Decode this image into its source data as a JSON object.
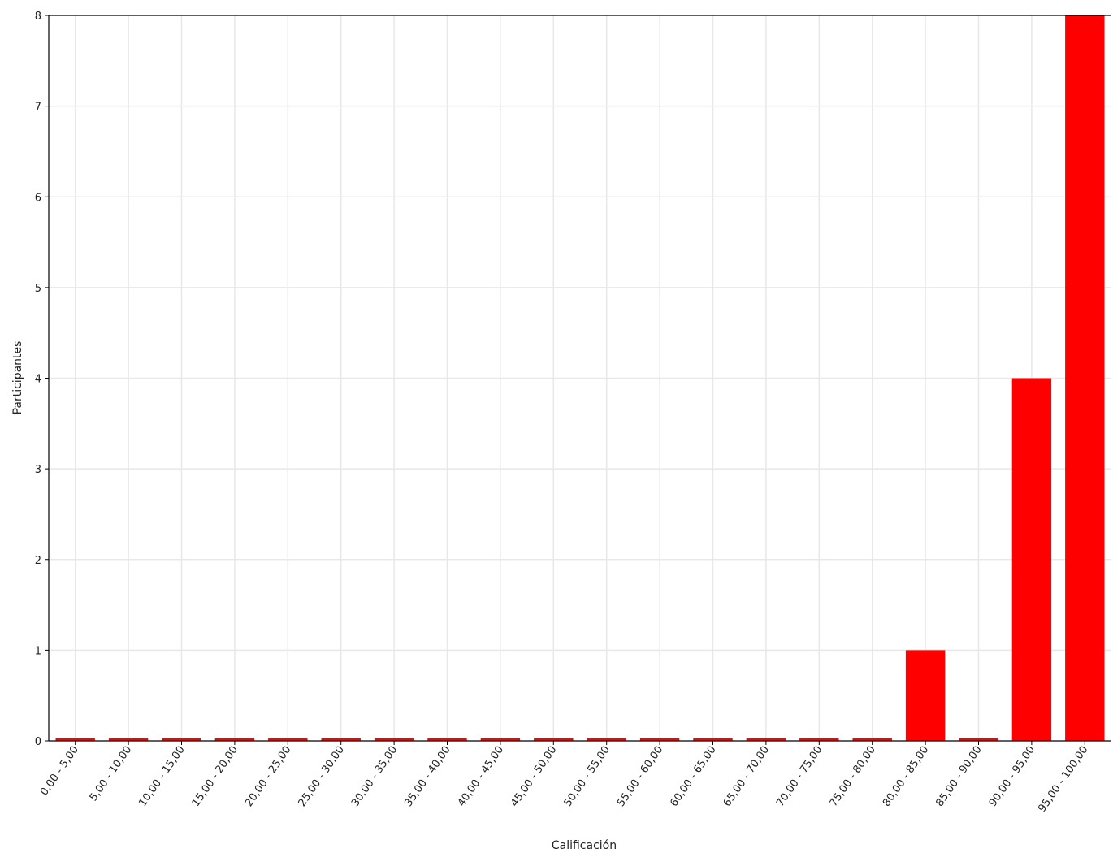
{
  "chart_data": {
    "type": "bar",
    "xlabel": "Calificación",
    "ylabel": "Participantes",
    "ylim": [
      0,
      8
    ],
    "yticks": [
      "0",
      "1",
      "2",
      "3",
      "4",
      "5",
      "6",
      "7",
      "8"
    ],
    "grid": true,
    "categories": [
      "0,00 - 5,00",
      "5,00 - 10,00",
      "10,00 - 15,00",
      "15,00 - 20,00",
      "20,00 - 25,00",
      "25,00 - 30,00",
      "30,00 - 35,00",
      "35,00 - 40,00",
      "40,00 - 45,00",
      "45,00 - 50,00",
      "50,00 - 55,00",
      "55,00 - 60,00",
      "60,00 - 65,00",
      "65,00 - 70,00",
      "70,00 - 75,00",
      "75,00 - 80,00",
      "80,00 - 85,00",
      "85,00 - 90,00",
      "90,00 - 95,00",
      "95,00 - 100,00"
    ],
    "values": [
      0,
      0,
      0,
      0,
      0,
      0,
      0,
      0,
      0,
      0,
      0,
      0,
      0,
      0,
      0,
      0,
      1,
      0,
      4,
      8
    ],
    "colors": {
      "bar": "#ff0000",
      "grid": "#e8e8e8",
      "axis": "#000000"
    }
  }
}
